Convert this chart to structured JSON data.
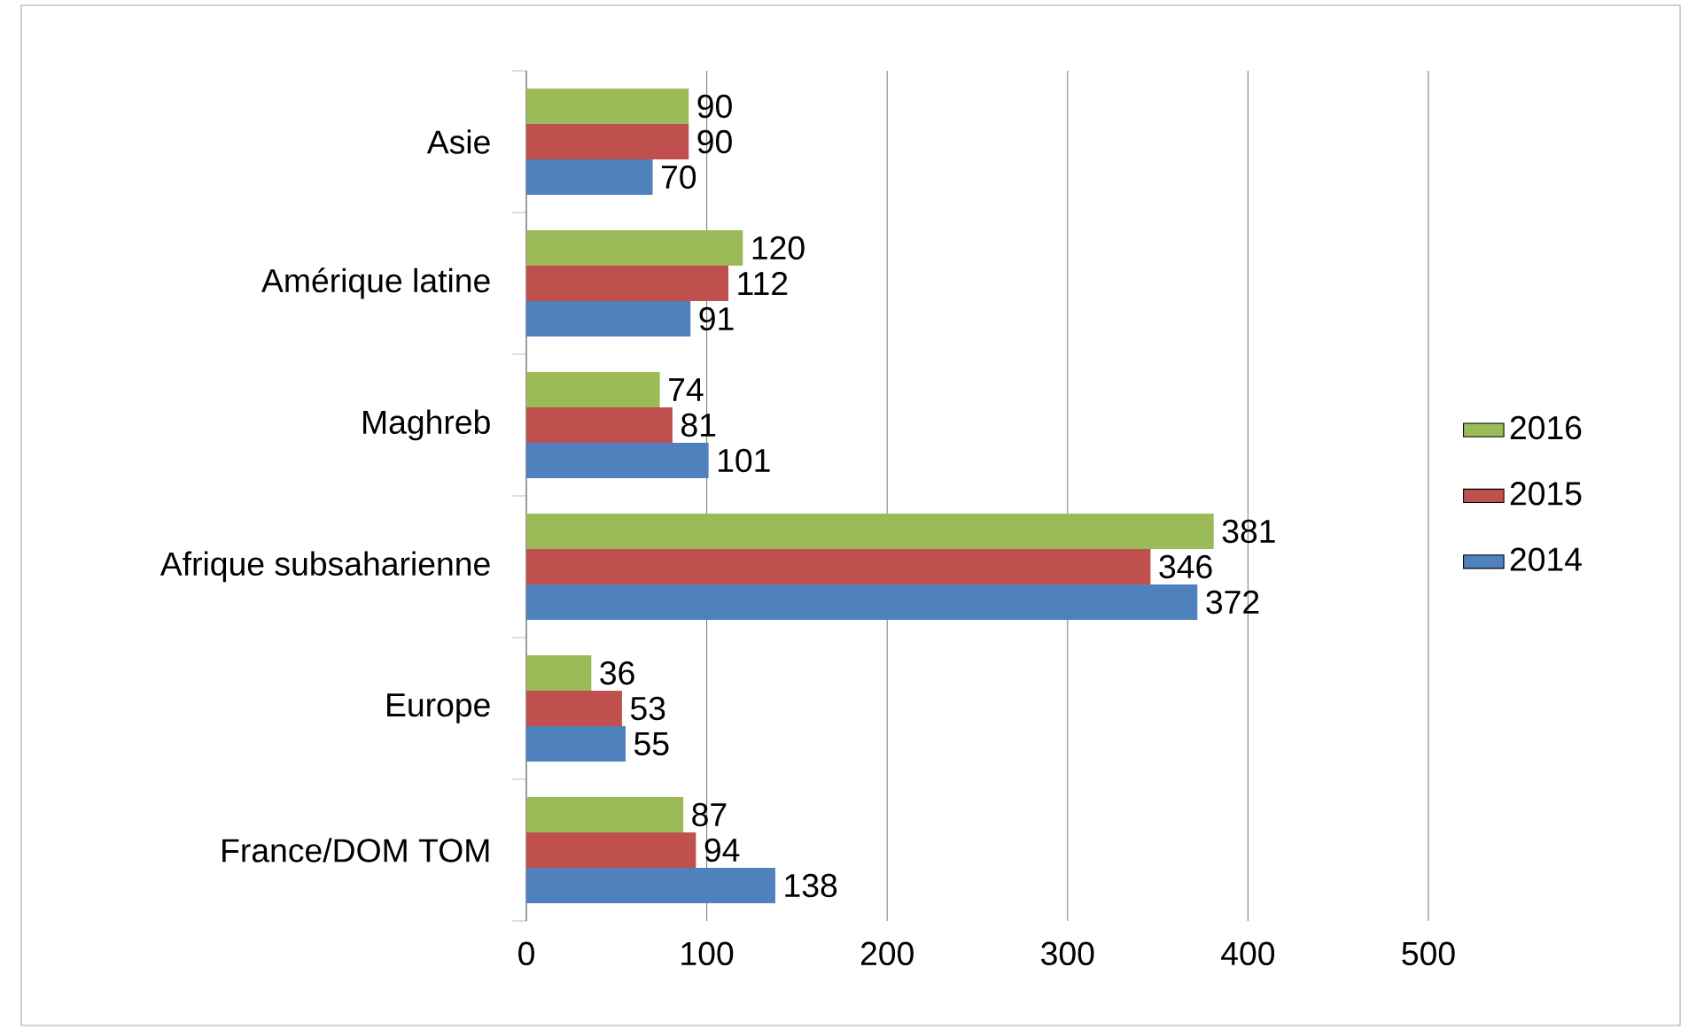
{
  "chart_data": {
    "type": "bar",
    "orientation": "horizontal",
    "categories": [
      "Asie",
      "Amérique latine",
      "Maghreb",
      "Afrique subsaharienne",
      "Europe",
      "France/DOM TOM"
    ],
    "series": [
      {
        "name": "2014",
        "color": "#4f81bd",
        "values": [
          70,
          91,
          101,
          372,
          55,
          138
        ]
      },
      {
        "name": "2015",
        "color": "#c0504d",
        "values": [
          90,
          112,
          81,
          346,
          53,
          94
        ]
      },
      {
        "name": "2016",
        "color": "#9bbb59",
        "values": [
          90,
          120,
          74,
          381,
          36,
          87
        ]
      }
    ],
    "xlim": [
      0,
      500
    ],
    "xticks": [
      0,
      100,
      200,
      300,
      400,
      500
    ],
    "grid": "x",
    "legend": "right",
    "data_labels": true
  }
}
